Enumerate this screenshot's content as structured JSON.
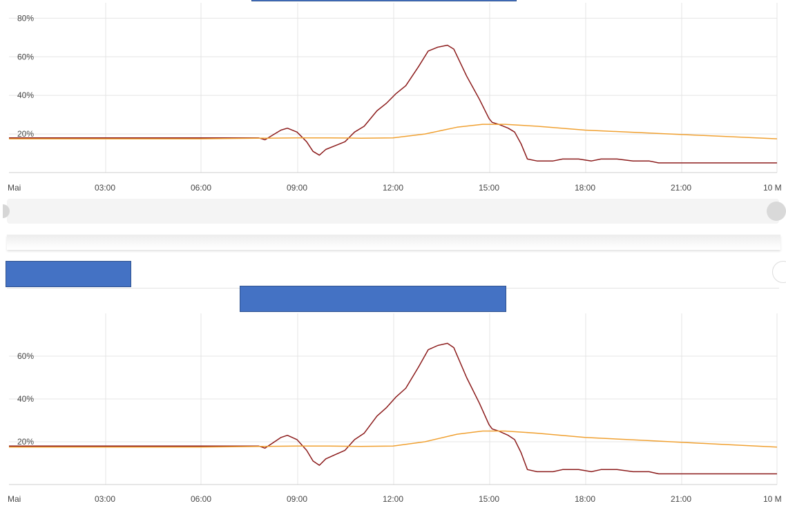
{
  "chart_data": [
    {
      "type": "line",
      "x_tick_labels": [
        "Mai",
        "03:00",
        "06:00",
        "09:00",
        "12:00",
        "15:00",
        "18:00",
        "21:00",
        "10 M"
      ],
      "y_tick_labels": [
        "20%",
        "40%",
        "60%",
        "80%"
      ],
      "ylim": [
        0,
        88
      ],
      "grid": true,
      "series": [
        {
          "color": "#8b1a1a",
          "points": [
            [
              0,
              18
            ],
            [
              7,
              18
            ],
            [
              7.8,
              18
            ],
            [
              8,
              17
            ],
            [
              8.2,
              19
            ],
            [
              8.5,
              22
            ],
            [
              8.7,
              23
            ],
            [
              9,
              21
            ],
            [
              9.3,
              16
            ],
            [
              9.5,
              11
            ],
            [
              9.7,
              9
            ],
            [
              9.9,
              12
            ],
            [
              10.2,
              14
            ],
            [
              10.5,
              16
            ],
            [
              10.8,
              21
            ],
            [
              11.1,
              24
            ],
            [
              11.5,
              32
            ],
            [
              11.8,
              36
            ],
            [
              12.1,
              41
            ],
            [
              12.4,
              45
            ],
            [
              12.8,
              55
            ],
            [
              13.1,
              63
            ],
            [
              13.4,
              65
            ],
            [
              13.7,
              66
            ],
            [
              13.9,
              64
            ],
            [
              14.3,
              50
            ],
            [
              14.7,
              38
            ],
            [
              15,
              28
            ],
            [
              15.1,
              26
            ],
            [
              15.3,
              25
            ],
            [
              15.6,
              23
            ],
            [
              15.8,
              21
            ],
            [
              16,
              15
            ],
            [
              16.2,
              7
            ],
            [
              16.5,
              6
            ],
            [
              17,
              6
            ],
            [
              17.3,
              7
            ],
            [
              17.8,
              7
            ],
            [
              18.2,
              6
            ],
            [
              18.5,
              7
            ],
            [
              19,
              7
            ],
            [
              19.5,
              6
            ],
            [
              20,
              6
            ],
            [
              20.3,
              5
            ],
            [
              23.1,
              5
            ],
            [
              24,
              5
            ]
          ]
        },
        {
          "color": "#f0a030",
          "points": [
            [
              0,
              17.5
            ],
            [
              6,
              17.5
            ],
            [
              9,
              18
            ],
            [
              10,
              18
            ],
            [
              11,
              17.8
            ],
            [
              12,
              18
            ],
            [
              13,
              20
            ],
            [
              14,
              23.5
            ],
            [
              14.8,
              25
            ],
            [
              15.5,
              25
            ],
            [
              16.5,
              24
            ],
            [
              18,
              22
            ],
            [
              20,
              20.5
            ],
            [
              22,
              19
            ],
            [
              24,
              17.5
            ]
          ]
        }
      ]
    },
    {
      "type": "line",
      "x_tick_labels": [
        "Mai",
        "03:00",
        "06:00",
        "09:00",
        "12:00",
        "15:00",
        "18:00",
        "21:00",
        "10 M"
      ],
      "y_tick_labels": [
        "20%",
        "40%",
        "60%"
      ],
      "ylim": [
        0,
        80
      ],
      "grid": true,
      "series": [
        {
          "color": "#8b1a1a",
          "points": [
            [
              0,
              18
            ],
            [
              7,
              18
            ],
            [
              7.8,
              18
            ],
            [
              8,
              17
            ],
            [
              8.2,
              19
            ],
            [
              8.5,
              22
            ],
            [
              8.7,
              23
            ],
            [
              9,
              21
            ],
            [
              9.3,
              16
            ],
            [
              9.5,
              11
            ],
            [
              9.7,
              9
            ],
            [
              9.9,
              12
            ],
            [
              10.2,
              14
            ],
            [
              10.5,
              16
            ],
            [
              10.8,
              21
            ],
            [
              11.1,
              24
            ],
            [
              11.5,
              32
            ],
            [
              11.8,
              36
            ],
            [
              12.1,
              41
            ],
            [
              12.4,
              45
            ],
            [
              12.8,
              55
            ],
            [
              13.1,
              63
            ],
            [
              13.4,
              65
            ],
            [
              13.7,
              66
            ],
            [
              13.9,
              64
            ],
            [
              14.3,
              50
            ],
            [
              14.7,
              38
            ],
            [
              15,
              28
            ],
            [
              15.1,
              26
            ],
            [
              15.3,
              25
            ],
            [
              15.6,
              23
            ],
            [
              15.8,
              21
            ],
            [
              16,
              15
            ],
            [
              16.2,
              7
            ],
            [
              16.5,
              6
            ],
            [
              17,
              6
            ],
            [
              17.3,
              7
            ],
            [
              17.8,
              7
            ],
            [
              18.2,
              6
            ],
            [
              18.5,
              7
            ],
            [
              19,
              7
            ],
            [
              19.5,
              6
            ],
            [
              20,
              6
            ],
            [
              20.3,
              5
            ],
            [
              23.1,
              5
            ],
            [
              24,
              5
            ]
          ]
        },
        {
          "color": "#f0a030",
          "points": [
            [
              0,
              17.5
            ],
            [
              6,
              17.5
            ],
            [
              9,
              18
            ],
            [
              10,
              18
            ],
            [
              11,
              17.8
            ],
            [
              12,
              18
            ],
            [
              13,
              20
            ],
            [
              14,
              23.5
            ],
            [
              14.8,
              25
            ],
            [
              15.5,
              25
            ],
            [
              16.5,
              24
            ],
            [
              18,
              22
            ],
            [
              20,
              20.5
            ],
            [
              22,
              19
            ],
            [
              24,
              17.5
            ]
          ]
        }
      ]
    }
  ],
  "colors": {
    "header_box": "#4472c4"
  }
}
